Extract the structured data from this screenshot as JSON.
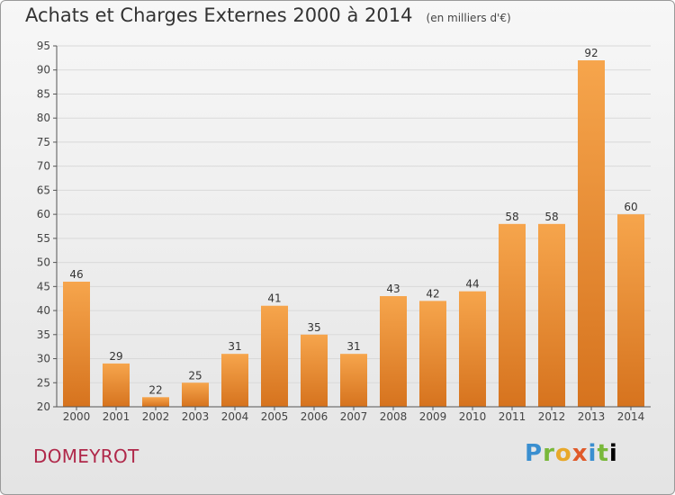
{
  "title": "Achats et Charges Externes 2000 à 2014",
  "subtitle": "(en milliers d'€)",
  "commune": "DOMEYROT",
  "logo_text": "Proxiti",
  "colors": {
    "bar_light": "#f6a54c",
    "bar_dark": "#d6731e",
    "grid": "#d9d9d9",
    "axis": "#555555",
    "commune": "#b0284a"
  },
  "chart_data": {
    "type": "bar",
    "title": "Achats et Charges Externes 2000 à 2014",
    "subtitle": "(en milliers d'€)",
    "categories": [
      "2000",
      "2001",
      "2002",
      "2003",
      "2004",
      "2005",
      "2006",
      "2007",
      "2008",
      "2009",
      "2010",
      "2011",
      "2012",
      "2013",
      "2014"
    ],
    "values": [
      46,
      29,
      22,
      25,
      31,
      41,
      35,
      31,
      43,
      42,
      44,
      58,
      58,
      92,
      60
    ],
    "ylim": [
      20,
      95
    ],
    "yticks": [
      20,
      25,
      30,
      35,
      40,
      45,
      50,
      55,
      60,
      65,
      70,
      75,
      80,
      85,
      90,
      95
    ],
    "grid": true,
    "data_labels": true
  }
}
